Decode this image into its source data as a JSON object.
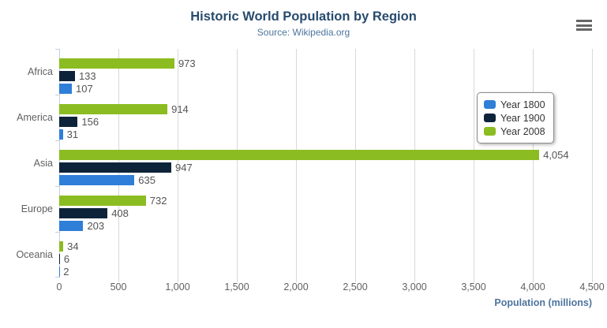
{
  "chart_data": {
    "type": "bar",
    "orientation": "horizontal",
    "title": "Historic World Population by Region",
    "subtitle": "Source: Wikipedia.org",
    "categories": [
      "Africa",
      "America",
      "Asia",
      "Europe",
      "Oceania"
    ],
    "series": [
      {
        "name": "Year 1800",
        "color": "#2f7ed8",
        "values": [
          107,
          31,
          635,
          203,
          2
        ],
        "labels": [
          "107",
          "31",
          "635",
          "203",
          "2"
        ]
      },
      {
        "name": "Year 1900",
        "color": "#0d233a",
        "values": [
          133,
          156,
          947,
          408,
          6
        ],
        "labels": [
          "133",
          "156",
          "947",
          "408",
          "6"
        ]
      },
      {
        "name": "Year 2008",
        "color": "#8bbc21",
        "values": [
          973,
          914,
          4054,
          732,
          34
        ],
        "labels": [
          "973",
          "914",
          "4,054",
          "732",
          "34"
        ]
      }
    ],
    "bar_order_top_to_bottom": [
      "Year 2008",
      "Year 1900",
      "Year 1800"
    ],
    "xlabel": "Population (millions)",
    "xlim": [
      0,
      4500
    ],
    "x_ticks": [
      0,
      500,
      1000,
      1500,
      2000,
      2500,
      3000,
      3500,
      4000,
      4500
    ],
    "x_tick_labels": [
      "0",
      "500",
      "1,000",
      "1,500",
      "2,000",
      "2,500",
      "3,000",
      "3,500",
      "4,000",
      "4,500"
    ],
    "grid": true,
    "legend_position": "right-overlay",
    "colors": {
      "title": "#274b6d",
      "subtitle": "#4d759e",
      "axis_title": "#4d759e",
      "axis_labels": "#606060",
      "value_labels": "#545454",
      "gridline": "#d8d8d8",
      "axis_line": "#c0d0e0"
    }
  },
  "export_menu": {
    "icon": "hamburger-menu-icon"
  }
}
